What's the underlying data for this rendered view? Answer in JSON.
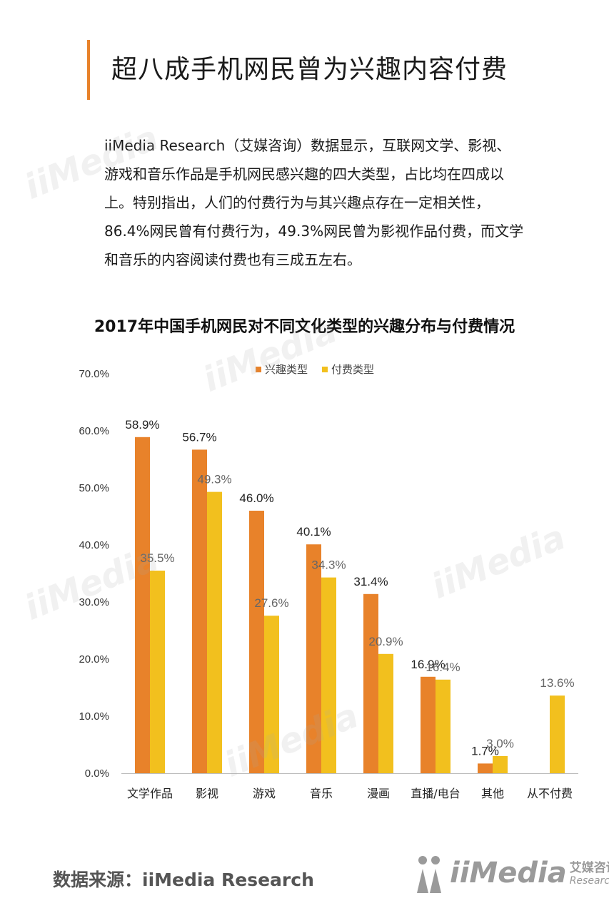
{
  "page_title": "超八成手机网民曾为兴趣内容付费",
  "intro_lines": [
    "iiMedia Research（艾媒咨询）数据显示，互联网文学、影视、",
    "游戏和音乐作品是手机网民感兴趣的四大类型，占比均在四成以",
    "上。特别指出，人们的付费行为与其兴趣点存在一定相关性，",
    "86.4%网民曾有付费行为，49.3%网民曾为影视作品付费，而文学",
    "和音乐的内容阅读付费也有三成五左右。"
  ],
  "source_text": "数据来源：iiMedia Research",
  "logo": {
    "word": "iiMedia",
    "cn": "艾媒咨询",
    "en": "Research"
  },
  "watermark": "iiMedia",
  "colors": {
    "accent": "#e8822a",
    "interest": "#e8822a",
    "paid": "#f2c01e"
  },
  "chart_data": {
    "type": "bar",
    "title": "2017年中国手机网民对不同文化类型的兴趣分布与付费情况",
    "categories": [
      "文学作品",
      "影视",
      "游戏",
      "音乐",
      "漫画",
      "直播/电台",
      "其他",
      "从不付费"
    ],
    "series": [
      {
        "name": "兴趣类型",
        "values": [
          58.9,
          56.7,
          46.0,
          40.1,
          31.4,
          16.9,
          1.7,
          null
        ],
        "labels": [
          "58.9%",
          "56.7%",
          "46.0%",
          "40.1%",
          "31.4%",
          "16.9%",
          "1.7%",
          ""
        ]
      },
      {
        "name": "付费类型",
        "values": [
          35.5,
          49.3,
          27.6,
          34.3,
          20.9,
          16.4,
          3.0,
          13.6
        ],
        "labels": [
          "35.5%",
          "49.3%",
          "27.6%",
          "34.3%",
          "20.9%",
          "16.4%",
          "3.0%",
          "13.6%"
        ]
      }
    ],
    "ylim": [
      0,
      70
    ],
    "yticks": [
      0,
      10,
      20,
      30,
      40,
      50,
      60,
      70
    ],
    "ytick_labels": [
      "0.0%",
      "10.0%",
      "20.0%",
      "30.0%",
      "40.0%",
      "50.0%",
      "60.0%",
      "70.0%"
    ],
    "legend": "top-center",
    "grid": false
  }
}
